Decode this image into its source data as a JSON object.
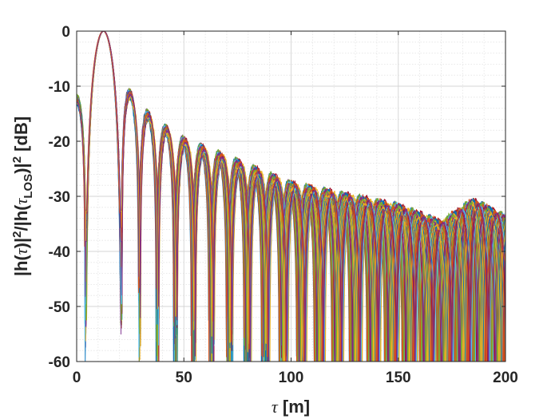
{
  "chart_data": {
    "type": "line",
    "title": "",
    "xlabel": "τ [m]",
    "xlabel_parts": {
      "symbol": "τ",
      "rest": " [m]"
    },
    "ylabel": "|h(τ)|²/|h(τLOS)|² [dB]",
    "ylabel_parts": {
      "p1": "|h(",
      "tau1": "τ",
      "p2": ")|",
      "sup1": "2",
      "p3": "/|h(",
      "tau2": "τ",
      "sub": "LOS",
      "p4": ")|",
      "sup2": "2",
      "p5": " [dB]"
    },
    "xlim": [
      0,
      200
    ],
    "ylim": [
      -60,
      0
    ],
    "xticks": [
      0,
      50,
      100,
      150,
      200
    ],
    "xtick_labels": [
      "0",
      "50",
      "100",
      "150",
      "200"
    ],
    "yticks": [
      0,
      -10,
      -20,
      -30,
      -40,
      -50,
      -60
    ],
    "ytick_labels": [
      "0",
      "-10",
      "-20",
      "-30",
      "-40",
      "-50",
      "-60"
    ],
    "grid": true,
    "minor_grid": true,
    "series_count": 60,
    "main_lobe_peak": {
      "x": 12.5,
      "y": 0
    },
    "first_sidelobe_left": {
      "x": 3.5,
      "y": -12.5
    },
    "sidelobe_envelope": [
      {
        "x": 22,
        "y": -10
      },
      {
        "x": 30,
        "y": -14
      },
      {
        "x": 38,
        "y": -17
      },
      {
        "x": 50,
        "y": -20
      },
      {
        "x": 75,
        "y": -24
      },
      {
        "x": 100,
        "y": -28
      },
      {
        "x": 125,
        "y": -30
      },
      {
        "x": 150,
        "y": -32
      },
      {
        "x": 170,
        "y": -35
      },
      {
        "x": 185,
        "y": -31
      },
      {
        "x": 200,
        "y": -34
      }
    ],
    "colors": [
      "#0072BD",
      "#D95319",
      "#EDB120",
      "#7E2F8E",
      "#77AC30",
      "#4DBEEE",
      "#A2142F"
    ]
  }
}
